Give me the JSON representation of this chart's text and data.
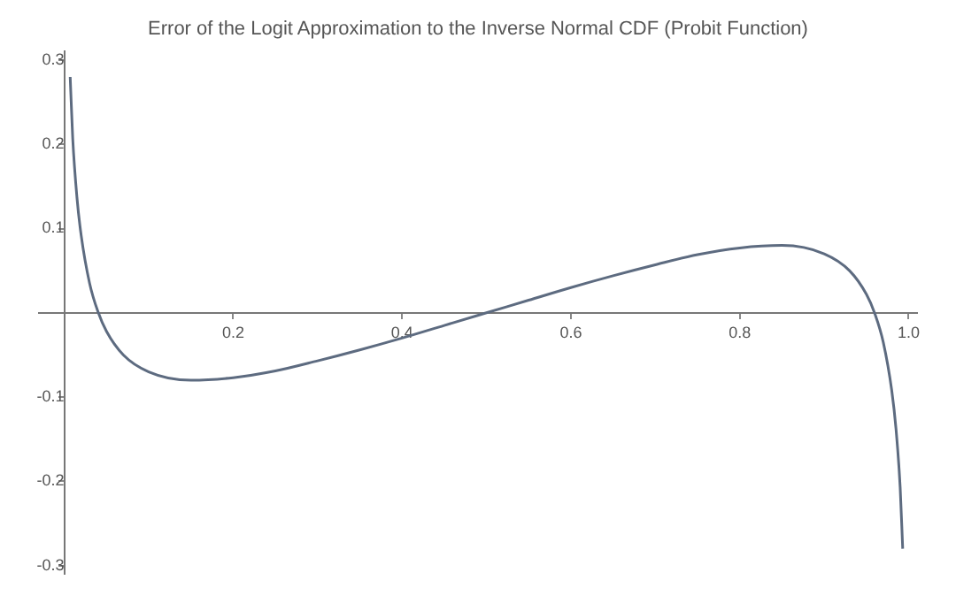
{
  "chart_data": {
    "type": "line",
    "title": "Error of the Logit Approximation to the Inverse Normal CDF (Probit Function)",
    "x": [
      0.007,
      0.01,
      0.015,
      0.02,
      0.03,
      0.04,
      0.05,
      0.07,
      0.1,
      0.15,
      0.2,
      0.25,
      0.3,
      0.35,
      0.4,
      0.45,
      0.5,
      0.55,
      0.6,
      0.65,
      0.7,
      0.75,
      0.8,
      0.85,
      0.9,
      0.93,
      0.95,
      0.96,
      0.97,
      0.98,
      0.985,
      0.99,
      0.993
    ],
    "series": [
      {
        "color": "#5d6b80",
        "values": [
          0.28,
          0.207,
          0.137,
          0.092,
          0.035,
          0.001,
          -0.022,
          -0.05,
          -0.07,
          -0.08,
          -0.077,
          -0.069,
          -0.057,
          -0.044,
          -0.03,
          -0.015,
          0,
          0.015,
          0.03,
          0.044,
          0.057,
          0.069,
          0.077,
          0.08,
          0.07,
          0.05,
          0.022,
          -0.001,
          -0.035,
          -0.092,
          -0.137,
          -0.207,
          -0.28
        ]
      }
    ],
    "xlim": [
      -0.03,
      1.01
    ],
    "ylim": [
      -0.31,
      0.31
    ],
    "xticks": [
      0.2,
      0.4,
      0.6,
      0.8,
      {
        "value": 1,
        "label": "1.0"
      }
    ],
    "yticks": [
      -0.3,
      -0.2,
      -0.1,
      0.1,
      0.2,
      0.3
    ],
    "grid": false,
    "legend": false,
    "marker": "none",
    "line_style": "solid"
  }
}
